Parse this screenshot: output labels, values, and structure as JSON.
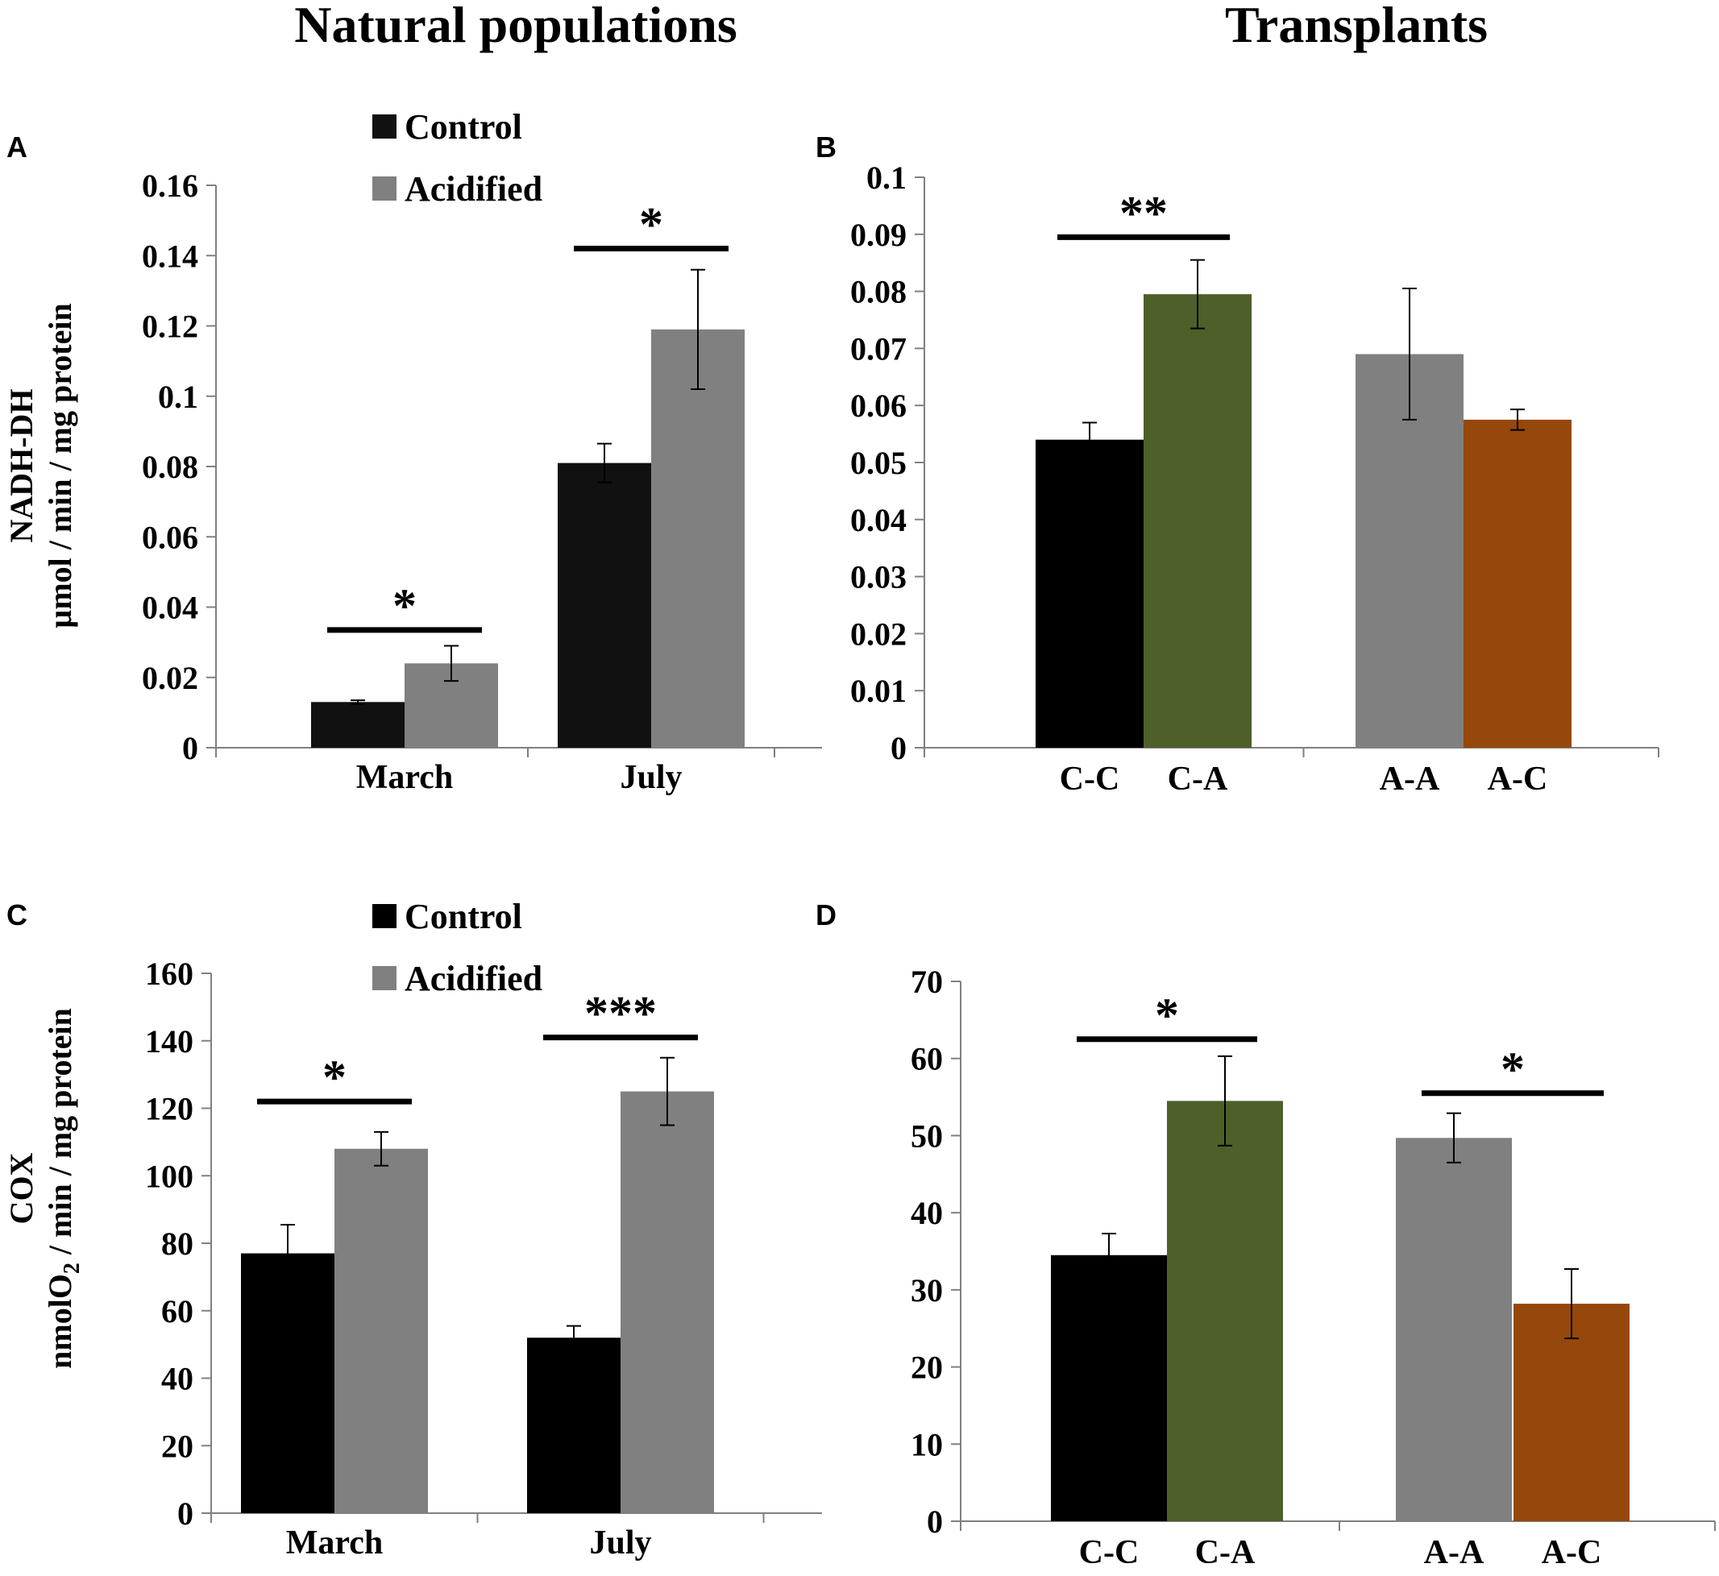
{
  "titles": {
    "left": "Natural populations",
    "right": "Transplants"
  },
  "chart_data": [
    {
      "panel": "A",
      "type": "bar",
      "categories": [
        "March",
        "July"
      ],
      "series": [
        {
          "name": "Control",
          "color": "#111111",
          "values": [
            0.013,
            0.081
          ],
          "errors": [
            0.0005,
            0.0055
          ]
        },
        {
          "name": "Acidified",
          "color": "#808080",
          "values": [
            0.024,
            0.119
          ],
          "errors": [
            0.005,
            0.017
          ]
        }
      ],
      "ylabel_line1": "NADH-DH",
      "ylabel_line2": "µmol / min / mg protein",
      "ylim": [
        0,
        0.16
      ],
      "yticks": [
        0,
        0.02,
        0.04,
        0.06,
        0.08,
        0.1,
        0.12,
        0.14,
        0.16
      ],
      "ytick_labels": [
        "0",
        "0.02",
        "0.04",
        "0.06",
        "0.08",
        "0.1",
        "0.12",
        "0.14",
        "0.16"
      ],
      "legend": [
        "Control",
        "Acidified"
      ],
      "significance": [
        {
          "category": "March",
          "stars": "*",
          "y": 0.0335
        },
        {
          "category": "July",
          "stars": "*",
          "y": 0.142
        }
      ]
    },
    {
      "panel": "B",
      "type": "bar",
      "categories": [
        "C-C",
        "C-A",
        "A-A",
        "A-C"
      ],
      "groups": [
        [
          "C-C",
          "C-A"
        ],
        [
          "A-A",
          "A-C"
        ]
      ],
      "values": [
        0.054,
        0.0795,
        0.069,
        0.0575
      ],
      "errors": [
        0.003,
        0.006,
        0.0115,
        0.0018
      ],
      "colors": [
        "#000000",
        "#4e5f2a",
        "#808080",
        "#96470c"
      ],
      "ylim": [
        0,
        0.1
      ],
      "yticks": [
        0,
        0.01,
        0.02,
        0.03,
        0.04,
        0.05,
        0.06,
        0.07,
        0.08,
        0.09,
        0.1
      ],
      "ytick_labels": [
        "0",
        "0.01",
        "0.02",
        "0.03",
        "0.04",
        "0.05",
        "0.06",
        "0.07",
        "0.08",
        "0.09",
        "0.1"
      ],
      "significance": [
        {
          "between": [
            "C-C",
            "C-A"
          ],
          "stars": "**",
          "y": 0.0895
        }
      ]
    },
    {
      "panel": "C",
      "type": "bar",
      "categories": [
        "March",
        "July"
      ],
      "series": [
        {
          "name": "Control",
          "color": "#000000",
          "values": [
            77,
            52
          ],
          "errors": [
            8.5,
            3.5
          ]
        },
        {
          "name": "Acidified",
          "color": "#808080",
          "values": [
            108,
            125
          ],
          "errors": [
            5,
            10
          ]
        }
      ],
      "ylabel_line1": "COX",
      "ylabel_line2_main": "nmolO",
      "ylabel_line2_sub": "2",
      "ylabel_line2_rest": " / min / mg protein",
      "ylim": [
        0,
        160
      ],
      "yticks": [
        0,
        20,
        40,
        60,
        80,
        100,
        120,
        140,
        160
      ],
      "ytick_labels": [
        "0",
        "20",
        "40",
        "60",
        "80",
        "100",
        "120",
        "140",
        "160"
      ],
      "legend": [
        "Control",
        "Acidified"
      ],
      "significance": [
        {
          "category": "March",
          "stars": "*",
          "y": 122
        },
        {
          "category": "July",
          "stars": "***",
          "y": 141
        }
      ]
    },
    {
      "panel": "D",
      "type": "bar",
      "categories": [
        "C-C",
        "C-A",
        "A-A",
        "A-C"
      ],
      "groups": [
        [
          "C-C",
          "C-A"
        ],
        [
          "A-A",
          "A-C"
        ]
      ],
      "values": [
        34.5,
        54.5,
        49.7,
        28.2
      ],
      "errors": [
        2.8,
        5.8,
        3.2,
        4.5
      ],
      "colors": [
        "#000000",
        "#4e5f2a",
        "#808080",
        "#96470c"
      ],
      "ylim": [
        0,
        70
      ],
      "yticks": [
        0,
        10,
        20,
        30,
        40,
        50,
        60,
        70
      ],
      "ytick_labels": [
        "0",
        "10",
        "20",
        "30",
        "40",
        "50",
        "60",
        "70"
      ],
      "significance": [
        {
          "between": [
            "C-C",
            "C-A"
          ],
          "stars": "*",
          "y": 62.5
        },
        {
          "between": [
            "A-A",
            "A-C"
          ],
          "stars": "*",
          "y": 55.5
        }
      ]
    }
  ]
}
